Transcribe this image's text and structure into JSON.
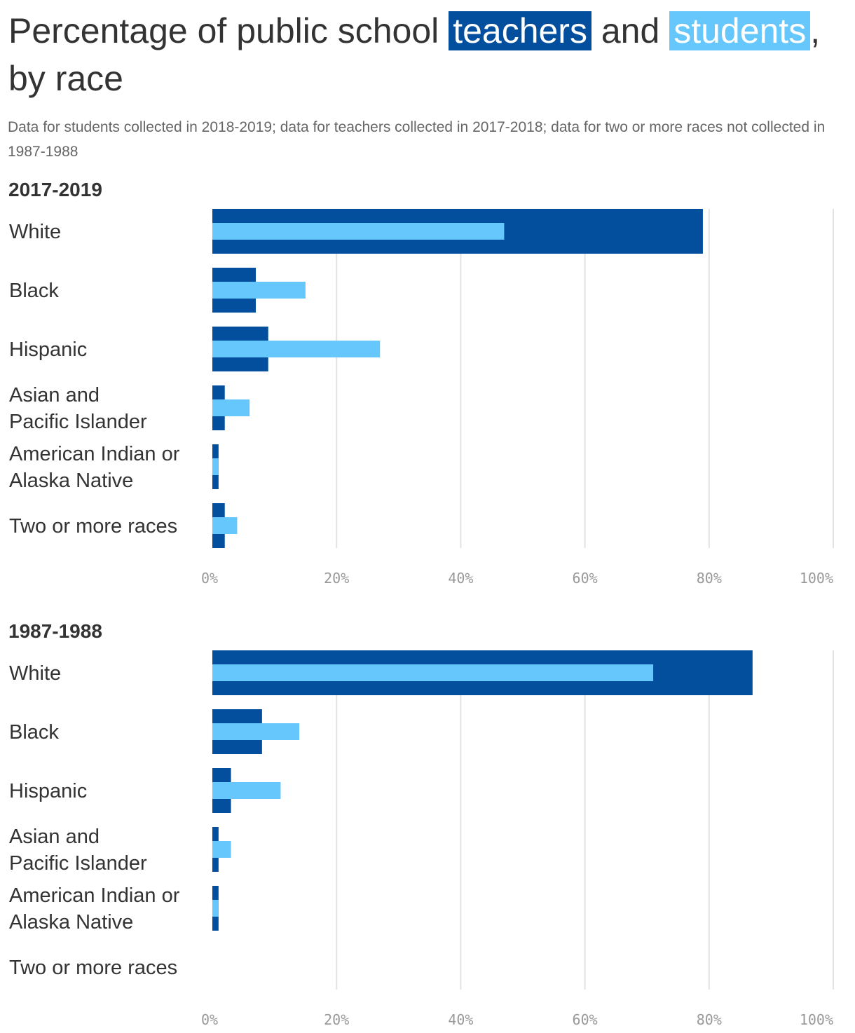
{
  "title": {
    "part1": "Percentage of public school ",
    "teachers_word": "teachers",
    "part2": " and ",
    "students_word": "students",
    "part3": ", by race"
  },
  "subtitle": "Data for students collected in 2018-2019; data for teachers collected in 2017-2018; data for two or more races not collected in 1987-1988",
  "colors": {
    "teachers": "#034f9e",
    "students": "#66c7fd",
    "grid": "#e3e3e3"
  },
  "chart_data": [
    {
      "type": "bar",
      "orientation": "horizontal",
      "title": "2017-2019",
      "categories": [
        "White",
        "Black",
        "Hispanic",
        "Asian and\nPacific Islander",
        "American Indian or\nAlaska Native",
        "Two or more races"
      ],
      "series": [
        {
          "name": "teachers",
          "values": [
            79,
            7,
            9,
            2,
            1,
            2
          ]
        },
        {
          "name": "students",
          "values": [
            47,
            15,
            27,
            6,
            1,
            4
          ]
        }
      ],
      "xlim": [
        0,
        100
      ],
      "xticks": [
        "0%",
        "20%",
        "40%",
        "60%",
        "80%",
        "100%"
      ],
      "grid": true
    },
    {
      "type": "bar",
      "orientation": "horizontal",
      "title": "1987-1988",
      "categories": [
        "White",
        "Black",
        "Hispanic",
        "Asian and\nPacific Islander",
        "American Indian or\nAlaska Native",
        "Two or more races"
      ],
      "series": [
        {
          "name": "teachers",
          "values": [
            87,
            8,
            3,
            1,
            1,
            null
          ]
        },
        {
          "name": "students",
          "values": [
            71,
            14,
            11,
            3,
            1,
            null
          ]
        }
      ],
      "xlim": [
        0,
        100
      ],
      "xticks": [
        "0%",
        "20%",
        "40%",
        "60%",
        "80%",
        "100%"
      ],
      "grid": true
    }
  ]
}
